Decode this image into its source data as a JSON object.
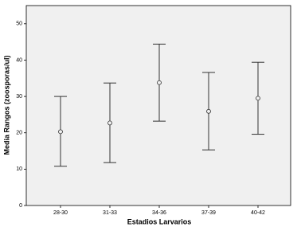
{
  "chart_data": {
    "type": "errorbar",
    "x_label": "Estadios Larvarios",
    "y_label": "Media Rangos (zoosporas/ul)",
    "categories": [
      "28-30",
      "31-33",
      "34-36",
      "37-39",
      "40-42"
    ],
    "values": [
      20.3,
      22.7,
      33.8,
      25.9,
      29.5
    ],
    "lower": [
      10.8,
      11.8,
      23.2,
      15.3,
      19.6
    ],
    "upper": [
      30.0,
      33.7,
      44.4,
      36.6,
      39.4
    ],
    "color": "#333333",
    "ylim": [
      0,
      55
    ],
    "yticks": [
      0,
      10,
      20,
      30,
      40,
      50
    ]
  }
}
